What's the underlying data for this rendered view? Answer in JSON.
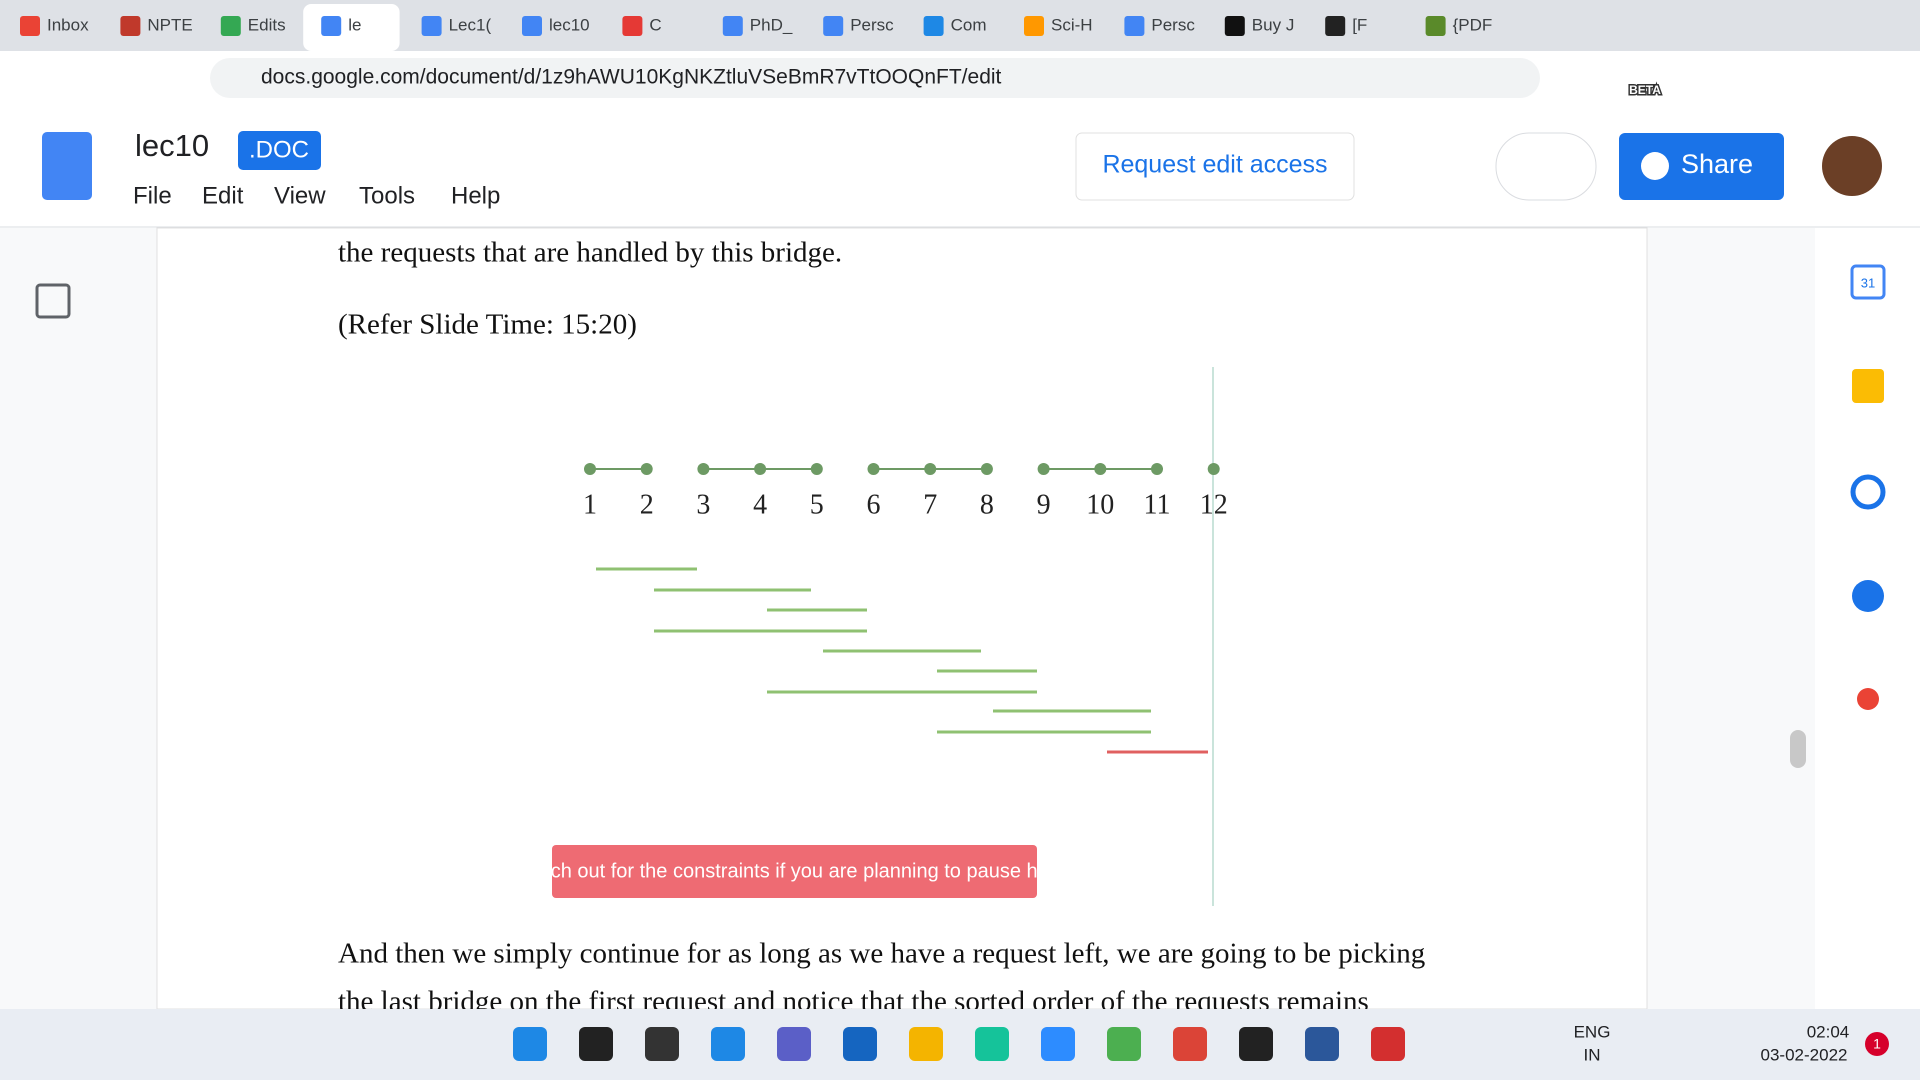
{
  "browser": {
    "tabs": [
      "Inbox",
      "NPTE",
      "Edits",
      "le",
      "Lec1(",
      "lec10",
      "C",
      "PhD_",
      "Persc",
      "Com",
      "Sci-H",
      "Persc",
      "Buy J",
      "[F",
      "{PDF"
    ],
    "url": "docs.google.com/document/d/1z9hAWU10KgNKZtluVSeBmR7vTtOOQnFT/edit",
    "badge": "BETA"
  },
  "docs": {
    "title": "lec10",
    "format": ".DOC",
    "menu": [
      "File",
      "Edit",
      "View",
      "Tools",
      "Help"
    ],
    "request": "Request edit access",
    "share": "Share"
  },
  "document": {
    "before": "the requests that are handled by this bridge.",
    "slide_ref": "(Refer Slide Time: 15:20)",
    "diagram": {
      "labels": [
        "1",
        "2",
        "3",
        "4",
        "5",
        "6",
        "7",
        "8",
        "9",
        "10",
        "11",
        "12"
      ],
      "note": "Watch out for the constraints if you are planning to pause here!"
    },
    "after": [
      "And then we simply continue for as long as we have a request left, we are going to be picking",
      "the last bridge on the first request and notice that the sorted order of the requests remains"
    ]
  },
  "sidebar": {
    "calendar": "31"
  },
  "taskbar": {
    "lang": "ENG",
    "region": "IN",
    "time": "02:04",
    "date": "03-02-2022",
    "notifications": "1"
  }
}
